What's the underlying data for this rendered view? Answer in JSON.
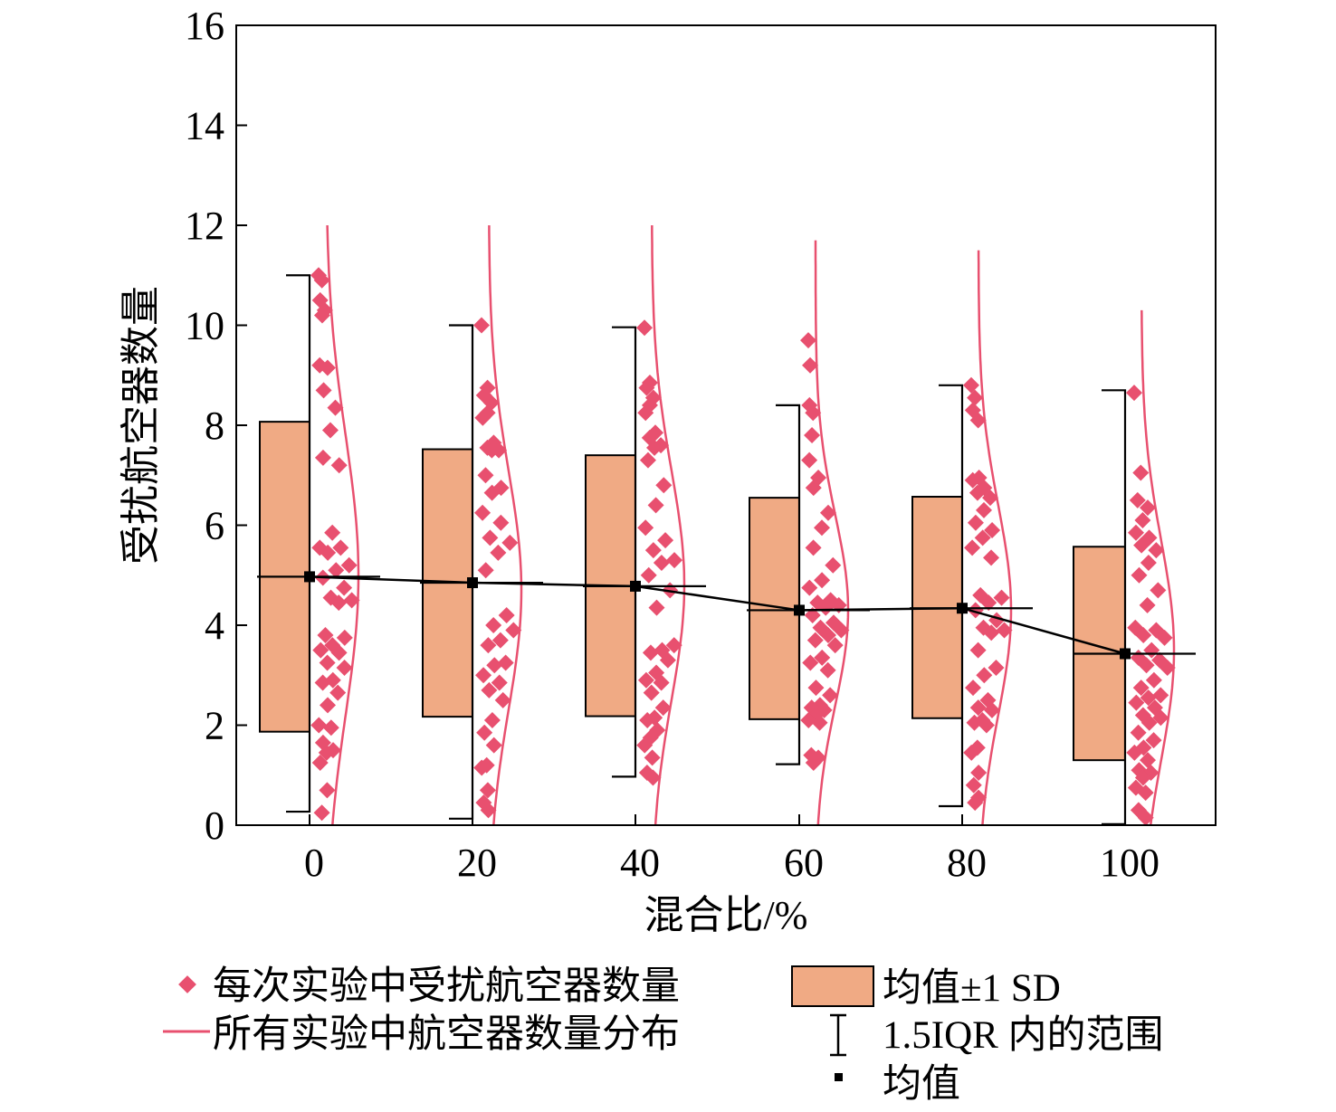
{
  "chart_data": {
    "type": "box",
    "xlabel": "混合比/%",
    "ylabel": "受扰航空器数量",
    "ylim": [
      0,
      16
    ],
    "yticks": [
      "0",
      "2",
      "4",
      "6",
      "8",
      "10",
      "12",
      "14",
      "16"
    ],
    "categories": [
      "0",
      "20",
      "40",
      "60",
      "80",
      "100"
    ],
    "mean": [
      4.97,
      4.85,
      4.78,
      4.3,
      4.34,
      3.43
    ],
    "mean_minus_sd": [
      1.87,
      2.17,
      2.18,
      2.12,
      2.14,
      1.3
    ],
    "mean_plus_sd": [
      8.07,
      7.52,
      7.4,
      6.55,
      6.57,
      5.57
    ],
    "whisker_low": [
      0.27,
      0.13,
      0.97,
      1.22,
      0.38,
      0.02
    ],
    "whisker_high": [
      11.0,
      10.0,
      9.96,
      8.4,
      8.8,
      8.7
    ],
    "distribution_curve": {
      "mu": [
        5.0,
        4.7,
        4.8,
        4.3,
        4.3,
        3.5
      ],
      "sigma": [
        2.8,
        2.4,
        2.3,
        1.9,
        2.1,
        2.2
      ],
      "top": [
        12.0,
        12.0,
        12.0,
        11.7,
        11.5,
        10.3
      ]
    },
    "points": [
      [
        11.0,
        10.9,
        10.5,
        10.3,
        10.2,
        9.2,
        9.15,
        8.7,
        8.35,
        7.9,
        7.35,
        7.2,
        5.85,
        5.55,
        5.55,
        5.45,
        5.2,
        5.1,
        4.95,
        4.75,
        4.55,
        4.5,
        4.45,
        3.8,
        3.75,
        3.6,
        3.5,
        3.45,
        3.25,
        3.15,
        2.9,
        2.85,
        2.65,
        2.4,
        2.0,
        1.95,
        1.65,
        1.5,
        1.45,
        1.25,
        0.7,
        0.25
      ],
      [
        10.0,
        8.75,
        8.6,
        8.45,
        8.25,
        8.15,
        7.65,
        7.55,
        7.5,
        7.5,
        7.0,
        6.75,
        6.65,
        6.25,
        6.05,
        5.75,
        5.65,
        5.45,
        5.1,
        4.2,
        4.0,
        3.9,
        3.7,
        3.6,
        3.25,
        3.2,
        3.0,
        2.85,
        2.7,
        2.5,
        2.1,
        1.85,
        1.6,
        1.2,
        1.15,
        0.7,
        0.45,
        0.3
      ],
      [
        9.95,
        8.85,
        8.75,
        8.55,
        8.4,
        8.25,
        7.85,
        7.75,
        7.6,
        7.55,
        7.3,
        6.8,
        6.4,
        5.95,
        5.7,
        5.5,
        5.3,
        5.25,
        5.0,
        4.7,
        4.35,
        3.6,
        3.5,
        3.45,
        3.3,
        3.05,
        2.9,
        2.85,
        2.65,
        2.35,
        2.15,
        2.1,
        1.9,
        1.75,
        1.6,
        1.35,
        1.05,
        0.95
      ],
      [
        9.7,
        9.2,
        8.4,
        8.25,
        7.8,
        7.3,
        6.95,
        6.75,
        6.25,
        5.95,
        5.55,
        5.2,
        4.9,
        4.75,
        4.5,
        4.45,
        4.4,
        4.35,
        4.2,
        4.05,
        3.95,
        3.9,
        3.8,
        3.7,
        3.6,
        3.35,
        3.25,
        3.1,
        2.75,
        2.6,
        2.4,
        2.35,
        2.3,
        2.2,
        2.1,
        2.05,
        1.4,
        1.35,
        1.25
      ],
      [
        8.8,
        8.55,
        8.3,
        8.1,
        6.95,
        6.9,
        6.75,
        6.65,
        6.55,
        6.3,
        6.05,
        5.9,
        5.75,
        5.55,
        5.35,
        4.6,
        4.55,
        4.45,
        4.3,
        4.1,
        3.95,
        3.9,
        3.85,
        3.5,
        3.15,
        3.0,
        2.75,
        2.5,
        2.35,
        2.3,
        2.1,
        2.05,
        2.0,
        1.55,
        1.45,
        1.05,
        0.8,
        0.55,
        0.45
      ],
      [
        8.65,
        7.05,
        6.5,
        6.35,
        6.1,
        5.85,
        5.75,
        5.6,
        5.5,
        5.25,
        5.0,
        4.7,
        4.4,
        3.95,
        3.9,
        3.8,
        3.75,
        3.5,
        3.35,
        3.3,
        3.2,
        3.15,
        2.9,
        2.75,
        2.6,
        2.55,
        2.45,
        2.35,
        2.2,
        2.15,
        2.05,
        1.85,
        1.7,
        1.55,
        1.45,
        1.3,
        1.1,
        1.05,
        0.95,
        0.75,
        0.65,
        0.3,
        0.15
      ]
    ],
    "legend": {
      "points_label": "每次实验中受扰航空器数量",
      "curve_label": "所有实验中航空器数量分布",
      "box_label": "均值±1 SD",
      "whisker_label": "1.5IQR 内的范围",
      "mean_label": "均值"
    },
    "colors": {
      "box_fill": "#f0aa84",
      "point": "#e8506f",
      "curve": "#e8506f",
      "line": "#000000"
    }
  }
}
